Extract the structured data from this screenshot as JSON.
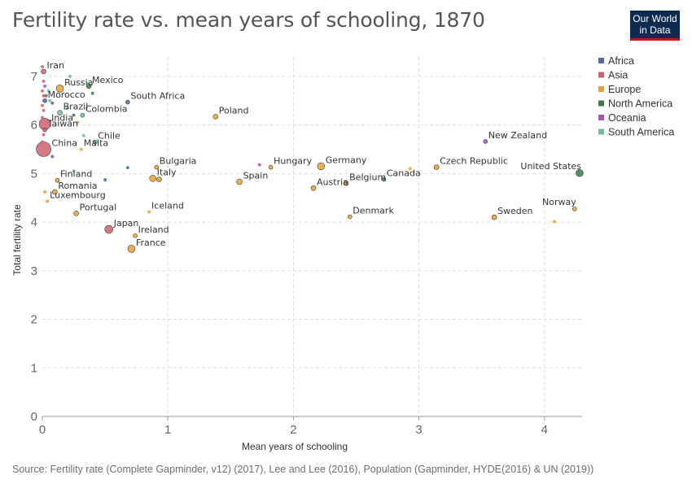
{
  "header": {
    "title": "Fertility rate vs. mean years of schooling, 1870",
    "logo_line1": "Our World",
    "logo_line2": "in Data"
  },
  "footer": {
    "source": "Source: Fertility rate (Complete Gapminder, v12) (2017), Lee and Lee (2016), Population (Gapminder, HYDE(2016) & UN (2019))"
  },
  "chart_data": {
    "type": "scatter",
    "title": "Fertility rate vs. mean years of schooling, 1870",
    "xlabel": "Mean years of schooling",
    "ylabel": "Total fertility rate",
    "xlim": [
      0,
      4.3
    ],
    "ylim": [
      0,
      7.4
    ],
    "x_ticks": [
      0,
      1,
      2,
      3,
      4
    ],
    "y_ticks": [
      0,
      1,
      2,
      3,
      4,
      5,
      6,
      7
    ],
    "grid": true,
    "legend_position": "right",
    "legend": [
      {
        "name": "Africa",
        "color": "#4c6a9c"
      },
      {
        "name": "Asia",
        "color": "#d0616e"
      },
      {
        "name": "Europe",
        "color": "#e6a032"
      },
      {
        "name": "North America",
        "color": "#3c7a4b"
      },
      {
        "name": "Oceania",
        "color": "#a652ba"
      },
      {
        "name": "South America",
        "color": "#6bc09b"
      }
    ],
    "points": [
      {
        "label": "Iran",
        "x": 0.01,
        "y": 7.1,
        "region": "Asia",
        "r": 3
      },
      {
        "label": "Russia",
        "x": 0.14,
        "y": 6.75,
        "region": "Europe",
        "r": 4.5
      },
      {
        "label": "Mexico",
        "x": 0.37,
        "y": 6.8,
        "region": "North America",
        "r": 3
      },
      {
        "label": "Morocco",
        "x": 0.02,
        "y": 6.5,
        "region": "Africa",
        "r": 2.5
      },
      {
        "label": "South Africa",
        "x": 0.68,
        "y": 6.47,
        "region": "Africa",
        "r": 2.5
      },
      {
        "label": "Brazil",
        "x": 0.14,
        "y": 6.25,
        "region": "South America",
        "r": 3
      },
      {
        "label": "Colombia",
        "x": 0.32,
        "y": 6.2,
        "region": "South America",
        "r": 2.5
      },
      {
        "label": "Poland",
        "x": 1.38,
        "y": 6.17,
        "region": "Europe",
        "r": 3
      },
      {
        "label": "India",
        "x": 0.02,
        "y": 6.02,
        "region": "Asia",
        "r": 7
      },
      {
        "label": "Taiwan",
        "x": 0.02,
        "y": 5.9,
        "region": "Asia",
        "r": 2.5
      },
      {
        "label": "China",
        "x": 0.01,
        "y": 5.5,
        "region": "Asia",
        "r": 9
      },
      {
        "label": "Chile",
        "x": 0.42,
        "y": 5.65,
        "region": "South America",
        "r": 2.5
      },
      {
        "label": "New Zealand",
        "x": 3.53,
        "y": 5.66,
        "region": "Oceania",
        "r": 2.5
      },
      {
        "label": "Malta",
        "x": 0.31,
        "y": 5.5,
        "region": "Europe",
        "r": 2
      },
      {
        "label": "Bulgaria",
        "x": 0.91,
        "y": 5.13,
        "region": "Europe",
        "r": 2.5
      },
      {
        "label": "Hungary",
        "x": 1.82,
        "y": 5.13,
        "region": "Europe",
        "r": 2.5
      },
      {
        "label": "Germany",
        "x": 2.22,
        "y": 5.15,
        "region": "Europe",
        "r": 4.5
      },
      {
        "label": "Czech Republic",
        "x": 3.14,
        "y": 5.13,
        "region": "Europe",
        "r": 3
      },
      {
        "label": "United States",
        "x": 4.28,
        "y": 5.01,
        "region": "North America",
        "r": 4.5
      },
      {
        "label": "Italy",
        "x": 0.88,
        "y": 4.9,
        "region": "Europe",
        "r": 4
      },
      {
        "label": "Spain",
        "x": 1.57,
        "y": 4.83,
        "region": "Europe",
        "r": 3.5
      },
      {
        "label": "Canada",
        "x": 2.72,
        "y": 4.88,
        "region": "North America",
        "r": 2.5
      },
      {
        "label": "Belgium",
        "x": 2.42,
        "y": 4.8,
        "region": "Europe",
        "r": 3
      },
      {
        "label": "Austria",
        "x": 2.16,
        "y": 4.7,
        "region": "Europe",
        "r": 3
      },
      {
        "label": "Finland",
        "x": 0.12,
        "y": 4.86,
        "region": "Europe",
        "r": 2.5
      },
      {
        "label": "Romania",
        "x": 0.1,
        "y": 4.62,
        "region": "Europe",
        "r": 3
      },
      {
        "label": "Luxembourg",
        "x": 0.04,
        "y": 4.43,
        "region": "Europe",
        "r": 2
      },
      {
        "label": "Portugal",
        "x": 0.27,
        "y": 4.18,
        "region": "Europe",
        "r": 3
      },
      {
        "label": "Iceland",
        "x": 0.85,
        "y": 4.21,
        "region": "Europe",
        "r": 2
      },
      {
        "label": "Denmark",
        "x": 2.45,
        "y": 4.11,
        "region": "Europe",
        "r": 2.5
      },
      {
        "label": "Sweden",
        "x": 3.6,
        "y": 4.1,
        "region": "Europe",
        "r": 3
      },
      {
        "label": "Norway",
        "x": 4.24,
        "y": 4.27,
        "region": "Europe",
        "r": 2.5
      },
      {
        "label": "Japan",
        "x": 0.53,
        "y": 3.85,
        "region": "Asia",
        "r": 5
      },
      {
        "label": "Ireland",
        "x": 0.74,
        "y": 3.72,
        "region": "Europe",
        "r": 2.5
      },
      {
        "label": "France",
        "x": 0.71,
        "y": 3.45,
        "region": "Europe",
        "r": 4.5
      },
      {
        "label": "",
        "x": 0.0,
        "y": 7.2,
        "region": "Asia",
        "r": 2
      },
      {
        "label": "",
        "x": 0.01,
        "y": 6.9,
        "region": "Asia",
        "r": 2
      },
      {
        "label": "",
        "x": 0.0,
        "y": 6.7,
        "region": "Asia",
        "r": 2
      },
      {
        "label": "",
        "x": 0.01,
        "y": 6.6,
        "region": "Asia",
        "r": 2
      },
      {
        "label": "",
        "x": 0.0,
        "y": 6.4,
        "region": "Asia",
        "r": 2
      },
      {
        "label": "",
        "x": 0.01,
        "y": 6.3,
        "region": "Asia",
        "r": 2
      },
      {
        "label": "",
        "x": 0.0,
        "y": 6.15,
        "region": "Asia",
        "r": 2
      },
      {
        "label": "",
        "x": 0.01,
        "y": 5.8,
        "region": "Asia",
        "r": 2
      },
      {
        "label": "",
        "x": 0.0,
        "y": 5.65,
        "region": "Asia",
        "r": 2
      },
      {
        "label": "",
        "x": 0.02,
        "y": 6.8,
        "region": "Oceania",
        "r": 2
      },
      {
        "label": "",
        "x": 0.03,
        "y": 6.6,
        "region": "Africa",
        "r": 2
      },
      {
        "label": "",
        "x": 0.05,
        "y": 6.7,
        "region": "South America",
        "r": 2
      },
      {
        "label": "",
        "x": 0.06,
        "y": 6.5,
        "region": "South America",
        "r": 2
      },
      {
        "label": "",
        "x": 0.08,
        "y": 6.45,
        "region": "Africa",
        "r": 2
      },
      {
        "label": "",
        "x": 0.2,
        "y": 6.35,
        "region": "South America",
        "r": 2
      },
      {
        "label": "",
        "x": 0.25,
        "y": 6.2,
        "region": "North America",
        "r": 2
      },
      {
        "label": "",
        "x": 0.28,
        "y": 6.05,
        "region": "Europe",
        "r": 2
      },
      {
        "label": "",
        "x": 0.36,
        "y": 6.85,
        "region": "South America",
        "r": 2
      },
      {
        "label": "",
        "x": 0.4,
        "y": 6.65,
        "region": "North America",
        "r": 2
      },
      {
        "label": "",
        "x": 0.22,
        "y": 7.0,
        "region": "South America",
        "r": 2
      },
      {
        "label": "",
        "x": 0.33,
        "y": 5.78,
        "region": "South America",
        "r": 2
      },
      {
        "label": "",
        "x": 0.08,
        "y": 5.35,
        "region": "Africa",
        "r": 2
      },
      {
        "label": "",
        "x": 0.68,
        "y": 5.12,
        "region": "Africa",
        "r": 2
      },
      {
        "label": "",
        "x": 0.5,
        "y": 4.87,
        "region": "Africa",
        "r": 2
      },
      {
        "label": "",
        "x": 0.25,
        "y": 5.05,
        "region": "South America",
        "r": 2
      },
      {
        "label": "",
        "x": 0.93,
        "y": 4.88,
        "region": "Europe",
        "r": 3
      },
      {
        "label": "",
        "x": 1.73,
        "y": 5.18,
        "region": "Oceania",
        "r": 2
      },
      {
        "label": "",
        "x": 2.93,
        "y": 5.1,
        "region": "Europe",
        "r": 2
      },
      {
        "label": "",
        "x": 4.08,
        "y": 4.01,
        "region": "Europe",
        "r": 2
      },
      {
        "label": "",
        "x": 0.02,
        "y": 4.62,
        "region": "Europe",
        "r": 2
      }
    ]
  }
}
